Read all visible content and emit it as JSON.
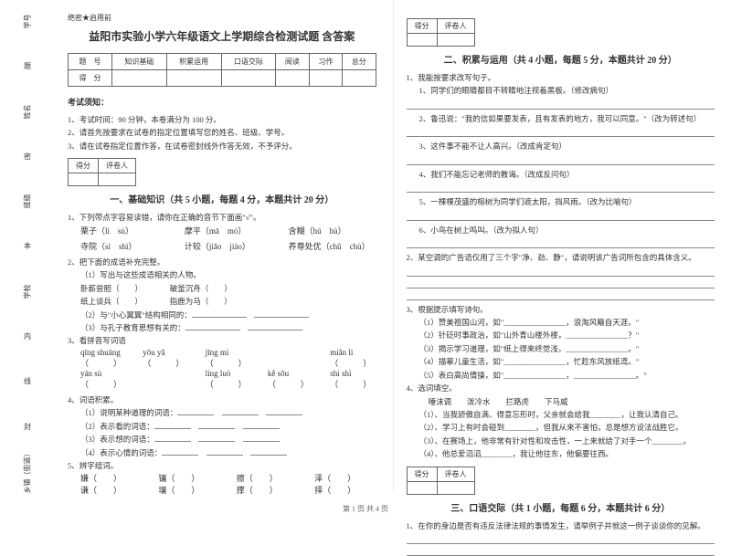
{
  "margin": {
    "labels": [
      "学号",
      "姓名",
      "班级",
      "学校",
      "乡镇（街道）"
    ],
    "dashchars": [
      "题",
      "密",
      "本",
      "内",
      "线",
      "封"
    ]
  },
  "left": {
    "confidential": "绝密★启用前",
    "title": "益阳市实验小学六年级语文上学期综合检测试题 含答案",
    "score_table": {
      "header": [
        "题　号",
        "知识基础",
        "积累运用",
        "口语交际",
        "阅读",
        "习作",
        "总分"
      ],
      "row_label": "得　分"
    },
    "notice_head": "考试须知：",
    "notices": [
      "1、考试时间：90 分钟，本卷满分为 100 分。",
      "2、请首先按要求在试卷的指定位置填写您的姓名、班级、学号。",
      "3、请在试卷指定位置作答，在试卷密封线外作答无效，不予评分。"
    ],
    "mini_table": {
      "c1": "得分",
      "c2": "评卷人"
    },
    "sec1_title": "一、基础知识（共 5 小题，每题 4 分，本题共计 20 分）",
    "q1": "1、下列带点字容易读错，请你在正确的音节下面画\"√\"。",
    "q1_rows": [
      [
        "栗子（lì　sù）",
        "摩平（mā　mó）",
        "含糊（hú　hù）"
      ],
      [
        "寺院（sì　shì）",
        "计较（jiǎo　jiào）",
        "养尊处优（chǔ　chù）"
      ]
    ],
    "q2": "2、把下面的成语补充完整。",
    "q2_sub": [
      "（1）写出与这些成语相关的人物。",
      "卧薪尝胆（　　）　　　　破釜沉舟（　　）",
      "纸上谈兵（　　）　　　　指鹿为马（　　）",
      "（2）与\"小心翼翼\"结构相同的：",
      "（3）与孔子教育思想有关的："
    ],
    "q3": "3、看拼音写词语",
    "q3_py": [
      [
        "qīng shuāng",
        "yōu yǎ",
        "jīng mì",
        "",
        "miǎn lì"
      ],
      [
        "（　　　）",
        "（　　　）",
        "（　　　）",
        "",
        "（　　　）"
      ],
      [
        "yán sù",
        "",
        "líng luò",
        "kě sǒu",
        "shì shì"
      ],
      [
        "（　　　）",
        "",
        "（　　　）",
        "（　　　）",
        "（　　　）"
      ]
    ],
    "q4": "4、词语积累。",
    "q4_sub": [
      "（1）说明某种道理的词语：",
      "（2）表示看的词语：",
      "（3）表示想的词语：",
      "（4）表示心情的词语："
    ],
    "q5": "5、辨字组词。",
    "q5_rows": [
      [
        "嫌（　　）",
        "镶（　　）",
        "擦（　　）",
        "泽（　　）"
      ],
      [
        "谦（　　）",
        "壤（　　）",
        "撑（　　）",
        "择（　　）"
      ]
    ]
  },
  "right": {
    "mini_table": {
      "c1": "得分",
      "c2": "评卷人"
    },
    "sec2_title": "二、积累与运用（共 4 小题，每题 5 分，本题共计 20 分）",
    "r_q1": "1、我能按要求改写句子。",
    "r_q1_items": [
      "1、同学们的眼睛都目不转睛地注视着黑板。（修改病句）",
      "2、鲁迅说：\"我的信如果要发表，且有发表的地方，我可以同意。\"（改为转述句）",
      "3、这件事不能不让人高兴。（改成肯定句）",
      "4、我们不能忘记老师的教诲。（改成反问句）",
      "5、一棵棵茂盛的榕树为同学们遮太阳，挡风雨。（改为比喻句）",
      "6、小鸟在树上鸣叫。（改为拟人句）"
    ],
    "r_q2": "2、某空调的广告语仅用了三个字\"净、劲、静\"，请说明该广告词所包含的具体含义。",
    "r_q3": "3、根据提示填写诗句。",
    "r_q3_items": [
      "（1）赞美祖国山河，如\"________________，浪淘风簸自天涯。\"",
      "（2）针砭时事政治，如\"山外青山楼外楼，________________？\"",
      "（3）揭示学习道理，如\"纸上得来终觉浅，________________。\"",
      "（4）描摹儿童生活，如\"________________，忙趁东风放纸鸢。\"",
      "（5）表白高尚情操，如\"________________，________________。\""
    ],
    "r_q4": "4、选词填空。",
    "r_q4_row": "唾沫调　　泼冷水　　拦路虎　　下马威",
    "r_q4_items": [
      "（1）、当我骄傲自满、得意忘形时，父亲就会给我________，让我认清自己。",
      "（2）、学习上有时会碰到________，但我从来不害怕，总是想方设法战胜它。",
      "（3）、在赛场上，他非常有针对性和攻击性，一上来就给了对手一个________。",
      "（4）、他总爱滔滔________，我让他往东，他偏要往西。"
    ],
    "sec3_title": "三、口语交际（共 1 小题，每题 6 分，本题共计 6 分）",
    "r_sec3_q": "1、在你的身边是否有违反法律法规的事情发生，请举例子并就这一例子谈谈你的见解。"
  },
  "footer": "第 1 页  共 4 页"
}
